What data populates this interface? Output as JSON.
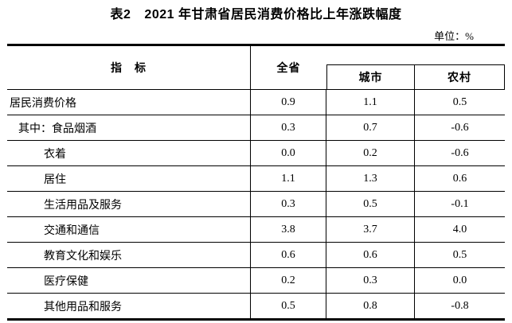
{
  "title": {
    "table_number": "表2",
    "text": "2021 年甘肃省居民消费价格比上年涨跌幅度"
  },
  "unit_note": "单位：%",
  "table": {
    "header": {
      "indicator": "指　标",
      "province": "全省",
      "city": "城市",
      "rural": "农村"
    },
    "rows": [
      {
        "label": "居民消费价格",
        "province": "0.9",
        "city": "1.1",
        "rural": "0.5"
      },
      {
        "label": "其中：食品烟酒",
        "province": "0.3",
        "city": "0.7",
        "rural": "-0.6"
      },
      {
        "label": "衣着",
        "province": "0.0",
        "city": "0.2",
        "rural": "-0.6"
      },
      {
        "label": "居住",
        "province": "1.1",
        "city": "1.3",
        "rural": "0.6"
      },
      {
        "label": "生活用品及服务",
        "province": "0.3",
        "city": "0.5",
        "rural": "-0.1"
      },
      {
        "label": "交通和通信",
        "province": "3.8",
        "city": "3.7",
        "rural": "4.0"
      },
      {
        "label": "教育文化和娱乐",
        "province": "0.6",
        "city": "0.6",
        "rural": "0.5"
      },
      {
        "label": "医疗保健",
        "province": "0.2",
        "city": "0.3",
        "rural": "0.0"
      },
      {
        "label": "其他用品和服务",
        "province": "0.5",
        "city": "0.8",
        "rural": "-0.8"
      }
    ]
  }
}
